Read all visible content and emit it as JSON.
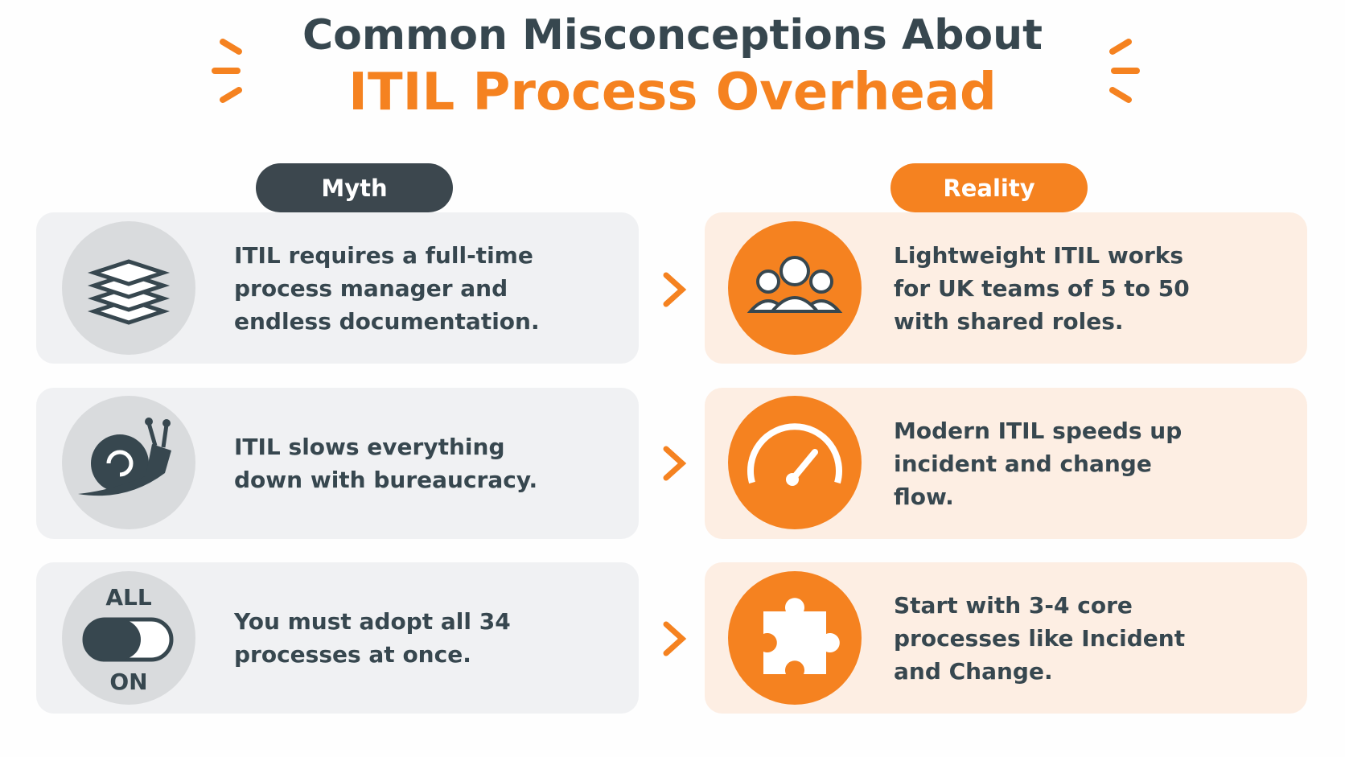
{
  "header": {
    "title_line1": "Common Misconceptions About",
    "title_line2": "ITIL Process Overhead"
  },
  "columns": {
    "myth": "Myth",
    "reality": "Reality"
  },
  "rows": [
    {
      "myth": "ITIL requires a full-time process manager and endless documentation.",
      "reality": "Lightweight ITIL works for UK teams of 5 to 50 with shared roles."
    },
    {
      "myth": "ITIL slows everything down with bureaucracy.",
      "reality": "Modern ITIL speeds up incident and change flow."
    },
    {
      "myth": "You must adopt all 34 processes at once.",
      "reality": "Start with 3-4 core processes like Incident and Change.",
      "icon_labels": [
        "ALL",
        "ON"
      ]
    }
  ]
}
